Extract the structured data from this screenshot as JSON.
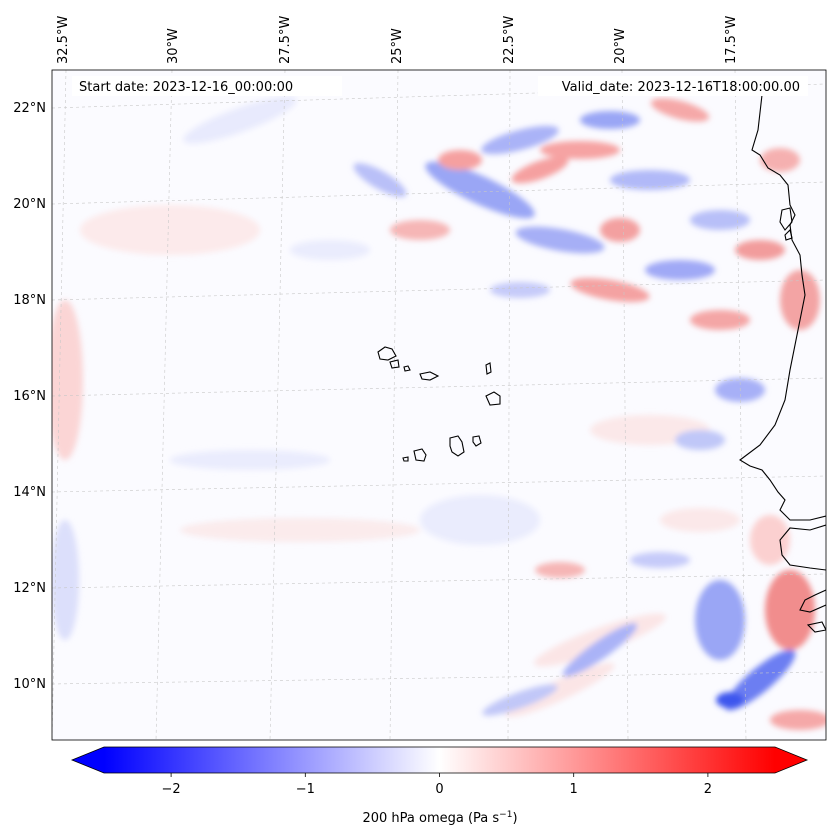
{
  "header": {
    "start_date": "Start date: 2023-12-16_00:00:00",
    "valid_date": "Valid_date: 2023-12-16T18:00:00.00"
  },
  "axes": {
    "lon_labels": [
      "32.5°W",
      "30°W",
      "27.5°W",
      "25°W",
      "22.5°W",
      "20°W",
      "17.5°W"
    ],
    "lat_labels": [
      "22°N",
      "20°N",
      "18°N",
      "16°N",
      "14°N",
      "12°N",
      "10°N"
    ]
  },
  "colorbar": {
    "label": "200 hPa omega (Pa s",
    "label_sup": "−1",
    "label_end": ")",
    "ticks": [
      "−2",
      "−1",
      "0",
      "1",
      "2"
    ],
    "tick_values": [
      -2,
      -1,
      0,
      1,
      2
    ],
    "range": [
      -2.5,
      2.5
    ],
    "colormap": "bwr",
    "color_min": "#0000ff",
    "color_mid": "#ffffff",
    "color_max": "#ff0000"
  },
  "map": {
    "variable": "200 hPa omega",
    "units": "Pa s^-1",
    "extent_lon": [
      -33,
      -15.5
    ],
    "extent_lat": [
      8.9,
      22.8
    ],
    "gridlines": "dashed light gray",
    "coastlines": "black"
  }
}
